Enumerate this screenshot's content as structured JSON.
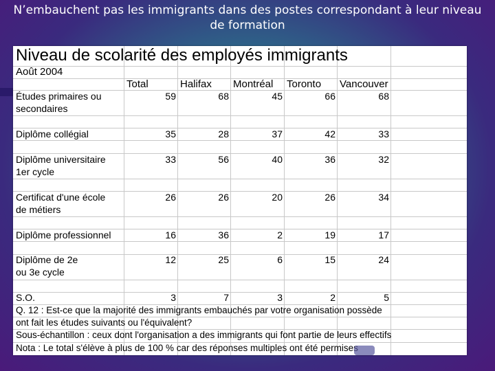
{
  "slide": {
    "title_line1": "N’embauchent pas les immigrants dans des postes correspondant à leur niveau",
    "title_line2": "de formation"
  },
  "table": {
    "heading": "Niveau de scolarité des employés immigrants",
    "date": "Août 2004",
    "columns": [
      "Total",
      "Halifax",
      "Montréal",
      "Toronto",
      "Vancouver"
    ],
    "rows": [
      {
        "label1": "Études primaires ou",
        "label2": "secondaires",
        "values": [
          "59",
          "68",
          "45",
          "66",
          "68"
        ]
      },
      {
        "label1": "Diplôme collégial",
        "label2": "",
        "values": [
          "35",
          "28",
          "37",
          "42",
          "33"
        ]
      },
      {
        "label1": "Diplôme universitaire",
        "label2": "1er cycle",
        "values": [
          "33",
          "56",
          "40",
          "36",
          "32"
        ]
      },
      {
        "label1": "Certificat d'une école",
        "label2": "de métiers",
        "values": [
          "26",
          "26",
          "20",
          "26",
          "34"
        ]
      },
      {
        "label1": "Diplôme professionnel",
        "label2": "",
        "values": [
          "16",
          "36",
          "2",
          "19",
          "17"
        ]
      },
      {
        "label1": "Diplôme de 2e",
        "label2": "ou 3e cycle",
        "values": [
          "12",
          "25",
          "6",
          "15",
          "24"
        ]
      },
      {
        "label1": "S.O.",
        "label2": "",
        "values": [
          "3",
          "7",
          "3",
          "2",
          "5"
        ]
      }
    ],
    "notes": [
      "Q. 12 : Est-ce que la majorité des immigrants embauchés par votre organisation possède",
      "ont fait les études suivants ou l'équivalent?",
      "Sous-échantillon : ceux dont l'organisation a des immigrants qui font partie de leurs effectifs",
      "Nota : Le total s'élève à plus de 100 % car des réponses multiples ont été permises"
    ]
  }
}
